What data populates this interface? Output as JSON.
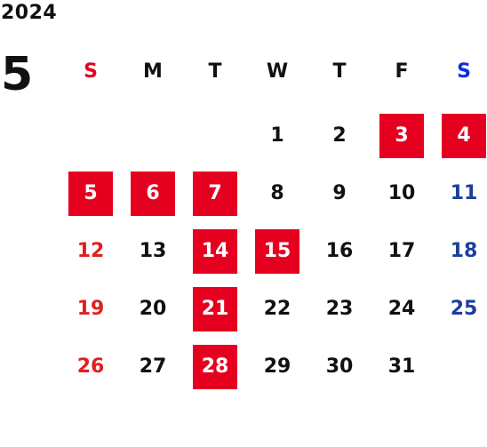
{
  "calendar": {
    "year": "2024",
    "month": "5",
    "weekday_headers": [
      "S",
      "M",
      "T",
      "W",
      "T",
      "F",
      "S"
    ],
    "colors": {
      "holiday_bg": "#e60020",
      "sunday": "#e02020",
      "saturday": "#1c3f9c",
      "weekday": "#111111"
    },
    "weeks": [
      [
        {
          "d": ""
        },
        {
          "d": ""
        },
        {
          "d": ""
        },
        {
          "d": "1"
        },
        {
          "d": "2"
        },
        {
          "d": "3",
          "holiday": true
        },
        {
          "d": "4",
          "holiday": true
        }
      ],
      [
        {
          "d": "5",
          "holiday": true
        },
        {
          "d": "6",
          "holiday": true
        },
        {
          "d": "7",
          "holiday": true
        },
        {
          "d": "8"
        },
        {
          "d": "9"
        },
        {
          "d": "10"
        },
        {
          "d": "11"
        }
      ],
      [
        {
          "d": "12"
        },
        {
          "d": "13"
        },
        {
          "d": "14",
          "holiday": true
        },
        {
          "d": "15",
          "holiday": true
        },
        {
          "d": "16"
        },
        {
          "d": "17"
        },
        {
          "d": "18"
        }
      ],
      [
        {
          "d": "19"
        },
        {
          "d": "20"
        },
        {
          "d": "21",
          "holiday": true
        },
        {
          "d": "22"
        },
        {
          "d": "23"
        },
        {
          "d": "24"
        },
        {
          "d": "25"
        }
      ],
      [
        {
          "d": "26"
        },
        {
          "d": "27"
        },
        {
          "d": "28",
          "holiday": true
        },
        {
          "d": "29"
        },
        {
          "d": "30"
        },
        {
          "d": "31"
        },
        {
          "d": ""
        }
      ]
    ]
  }
}
